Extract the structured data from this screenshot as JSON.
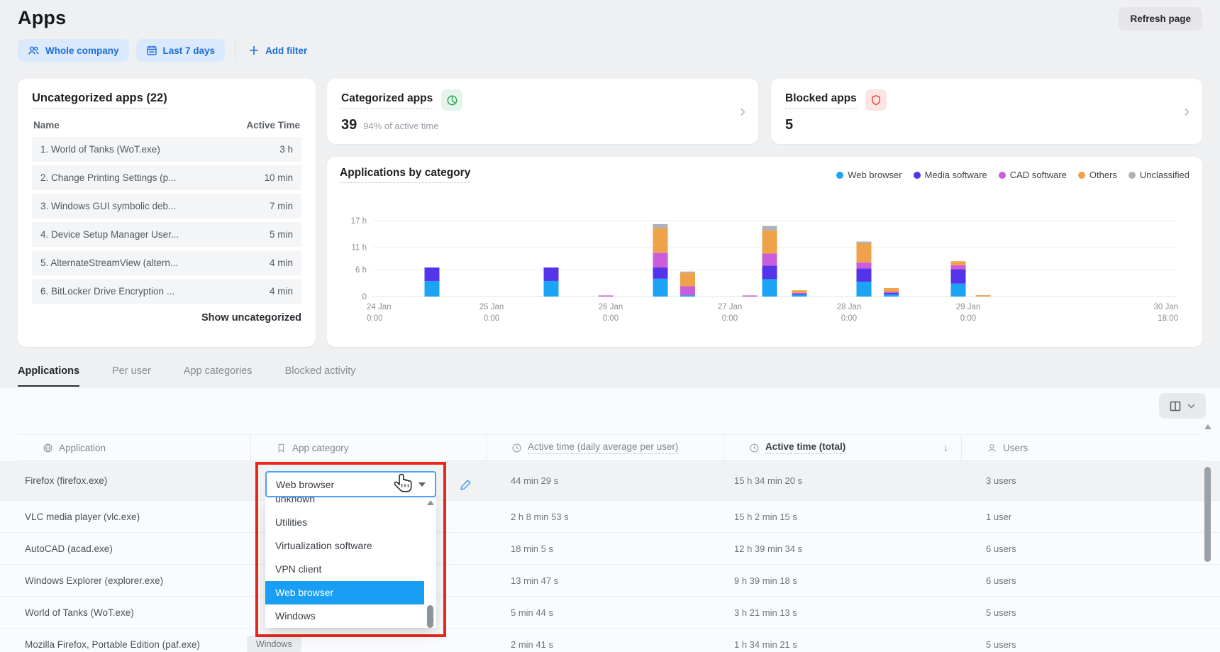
{
  "page": {
    "title": "Apps",
    "refresh_button": "Refresh page"
  },
  "filters": {
    "company": "Whole company",
    "period": "Last 7 days",
    "add_filter": "Add filter"
  },
  "icons": {
    "chevron_right": "›",
    "sort_desc": "↓"
  },
  "cards": {
    "uncategorized": {
      "title": "Uncategorized apps (22)",
      "columns": {
        "name": "Name",
        "time": "Active Time"
      },
      "rows": [
        {
          "name": "1. World of Tanks (WoT.exe)",
          "time": "3 h"
        },
        {
          "name": "2. Change Printing Settings (p...",
          "time": "10 min"
        },
        {
          "name": "3. Windows GUI symbolic deb...",
          "time": "7 min"
        },
        {
          "name": "4. Device Setup Manager User...",
          "time": "5 min"
        },
        {
          "name": "5. AlternateStreamView (altern...",
          "time": "4 min"
        },
        {
          "name": "6. BitLocker Drive Encryption ...",
          "time": "4 min"
        }
      ],
      "footer_link": "Show uncategorized"
    },
    "categorized": {
      "title": "Categorized apps",
      "icon": "pie-chart-icon",
      "value": "39",
      "subtext": "94% of active time"
    },
    "blocked": {
      "title": "Blocked apps",
      "icon": "shield-icon",
      "value": "5"
    }
  },
  "chart_data": {
    "type": "bar",
    "stacked": true,
    "title": "Applications by category",
    "legend_position": "top-right",
    "grid": true,
    "legend": [
      {
        "name": "Web browser",
        "color": "#1ba3f5"
      },
      {
        "name": "Media software",
        "color": "#5533ea"
      },
      {
        "name": "CAD software",
        "color": "#c95ddb"
      },
      {
        "name": "Others",
        "color": "#efa24a"
      },
      {
        "name": "Unclassified",
        "color": "#aeb1b5"
      }
    ],
    "y_axis": {
      "unit": "hours",
      "tick_hours": [
        0,
        6,
        11,
        17
      ],
      "tick_labels": [
        "0",
        "6 h",
        "11 h",
        "17 h"
      ],
      "max": 18.5
    },
    "x_axis": {
      "total_hours": 162,
      "tick_hours": [
        0,
        24,
        48,
        72,
        96,
        120,
        162
      ],
      "tick_labels": [
        [
          "24 Jan",
          "0:00"
        ],
        [
          "25 Jan",
          "0:00"
        ],
        [
          "26 Jan",
          "0:00"
        ],
        [
          "27 Jan",
          "0:00"
        ],
        [
          "28 Jan",
          "0:00"
        ],
        [
          "29 Jan",
          "0:00"
        ],
        [
          "30 Jan",
          "18:00"
        ]
      ]
    },
    "series_order": [
      "Web browser",
      "Media software",
      "CAD software",
      "Others",
      "Unclassified"
    ],
    "bars": [
      {
        "t": 12,
        "values": [
          3.5,
          3.0,
          0,
          0,
          0
        ]
      },
      {
        "t": 36,
        "values": [
          3.5,
          3.0,
          0,
          0,
          0
        ]
      },
      {
        "t": 47,
        "values": [
          0,
          0,
          0.25,
          0,
          0
        ]
      },
      {
        "t": 58,
        "values": [
          4.0,
          2.5,
          3.3,
          5.5,
          0.9
        ]
      },
      {
        "t": 63.5,
        "values": [
          0.3,
          0,
          2.0,
          3.0,
          0.3
        ]
      },
      {
        "t": 76,
        "values": [
          0,
          0,
          0.25,
          0,
          0
        ]
      },
      {
        "t": 80,
        "values": [
          3.9,
          3.0,
          2.7,
          5.2,
          1.0
        ]
      },
      {
        "t": 86,
        "values": [
          0.4,
          0.2,
          0.2,
          0.6,
          0
        ]
      },
      {
        "t": 99,
        "values": [
          3.3,
          3.0,
          1.3,
          4.3,
          0.4
        ]
      },
      {
        "t": 104.5,
        "values": [
          0.5,
          0.3,
          0.3,
          0.8,
          0
        ]
      },
      {
        "t": 118,
        "values": [
          2.9,
          3.2,
          0.9,
          0.9,
          0
        ]
      },
      {
        "t": 123,
        "values": [
          0,
          0,
          0,
          0.3,
          0
        ]
      }
    ]
  },
  "tabs": [
    {
      "label": "Applications",
      "active": true
    },
    {
      "label": "Per user",
      "active": false
    },
    {
      "label": "App categories",
      "active": false
    },
    {
      "label": "Blocked activity",
      "active": false
    }
  ],
  "table": {
    "columns": [
      {
        "label": "Application",
        "icon": "app-icon",
        "dotted": false,
        "sorted": false
      },
      {
        "label": "App category",
        "icon": "category-icon",
        "dotted": false,
        "sorted": false
      },
      {
        "label": "Active time (daily average per user)",
        "icon": "clock-icon",
        "dotted": true,
        "sorted": false
      },
      {
        "label": "Active time (total)",
        "icon": "clock-icon",
        "dotted": true,
        "sorted": true
      },
      {
        "label": "Users",
        "icon": "user-icon",
        "dotted": false,
        "sorted": false
      }
    ],
    "rows": [
      {
        "application": "Firefox (firefox.exe)",
        "category": "",
        "daily_avg": "44 min 29 s",
        "total": "15 h 34 min 20 s",
        "users": "3 users",
        "highlighted": true
      },
      {
        "application": "VLC media player (vlc.exe)",
        "category": "",
        "daily_avg": "2 h 8 min 53 s",
        "total": "15 h 2 min 15 s",
        "users": "1 user",
        "highlighted": false
      },
      {
        "application": "AutoCAD (acad.exe)",
        "category": "",
        "daily_avg": "18 min 5 s",
        "total": "12 h 39 min 34 s",
        "users": "6 users",
        "highlighted": false
      },
      {
        "application": "Windows Explorer (explorer.exe)",
        "category": "",
        "daily_avg": "13 min 47 s",
        "total": "9 h 39 min 18 s",
        "users": "6 users",
        "highlighted": false
      },
      {
        "application": "World of Tanks (WoT.exe)",
        "category": "",
        "daily_avg": "5 min 44 s",
        "total": "3 h 21 min 13 s",
        "users": "5 users",
        "highlighted": false
      },
      {
        "application": "Mozilla Firefox, Portable Edition (paf.exe)",
        "category": "Windows",
        "daily_avg": "2 min 41 s",
        "total": "1 h 34 min 21 s",
        "users": "5 users",
        "highlighted": false
      }
    ]
  },
  "category_dropdown": {
    "selected": "Web browser",
    "options": [
      "unknown",
      "Utilities",
      "Virtualization software",
      "VPN client",
      "Web browser",
      "Windows"
    ],
    "highlighted_option": "Web browser"
  }
}
